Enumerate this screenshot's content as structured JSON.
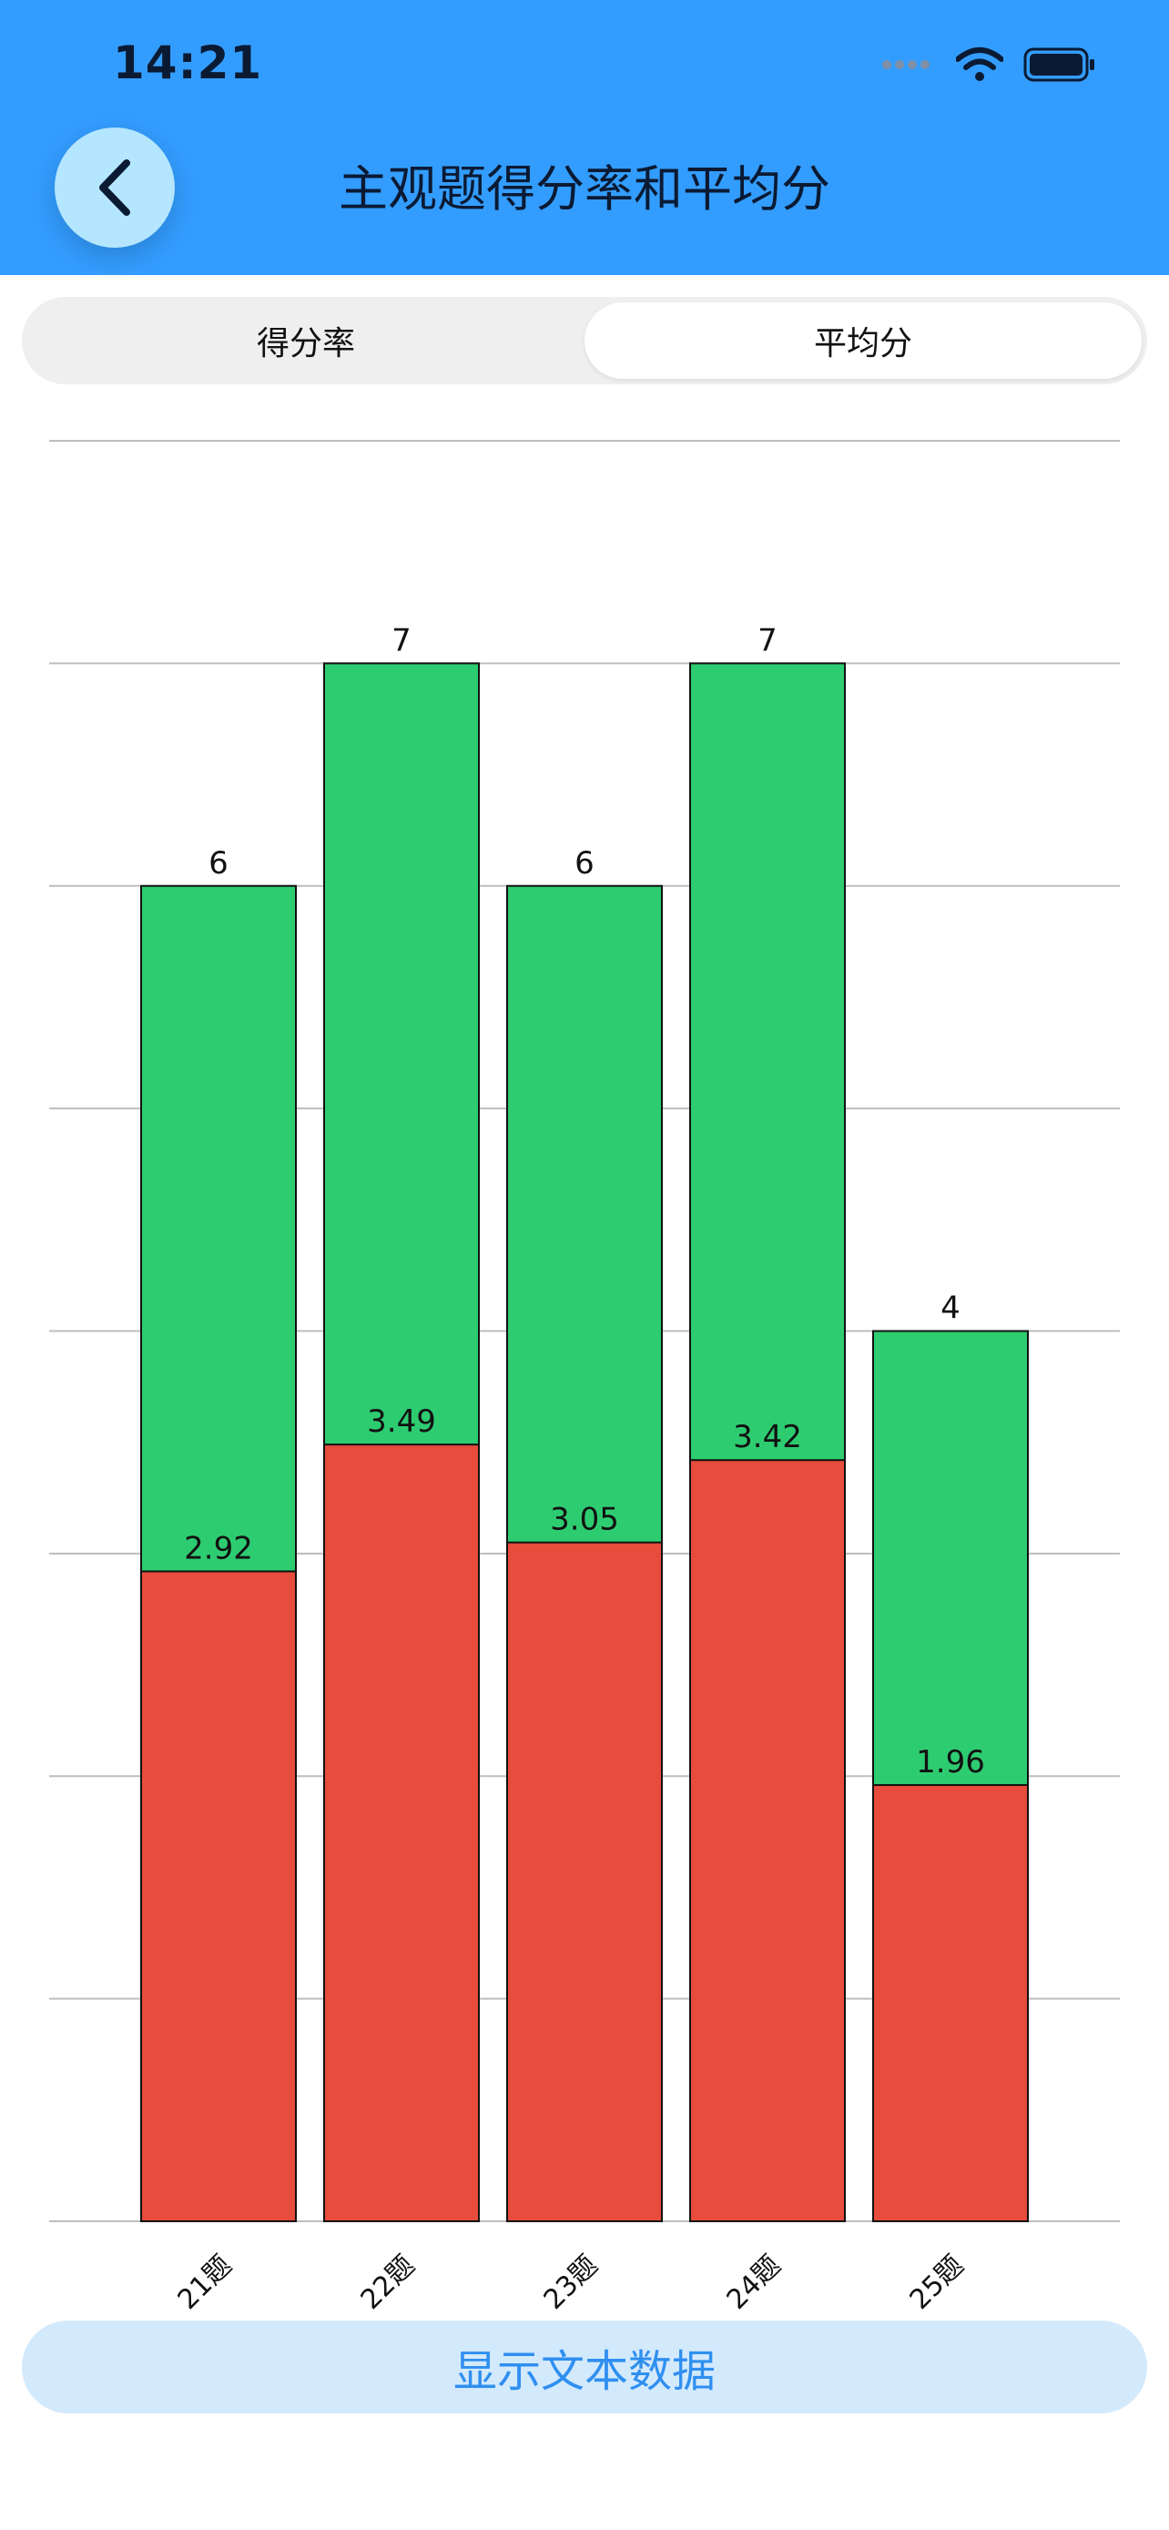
{
  "status": {
    "time": "14:21"
  },
  "header": {
    "title": "主观题得分率和平均分"
  },
  "tabs": [
    {
      "label": "得分率",
      "selected": false
    },
    {
      "label": "平均分",
      "selected": true
    }
  ],
  "colors": {
    "header_bg": "#339dff",
    "total_bar": "#2ecc71",
    "avg_bar": "#e74c3c",
    "accent": "#2f8ff0"
  },
  "chart_data": {
    "type": "bar",
    "categories": [
      "21题",
      "22题",
      "23题",
      "24题",
      "25题"
    ],
    "series": [
      {
        "values": [
          6,
          7,
          6,
          7,
          4
        ],
        "color": "#2ecc71"
      },
      {
        "values": [
          2.92,
          3.49,
          3.05,
          3.42,
          1.96
        ],
        "color": "#e74c3c"
      }
    ],
    "data_labels": {
      "total": [
        "6",
        "7",
        "6",
        "7",
        "4"
      ],
      "avg": [
        "2.92",
        "3.49",
        "3.05",
        "3.42",
        "1.96"
      ]
    },
    "ylim": [
      0,
      8
    ],
    "gridlines": [
      0,
      1,
      2,
      3,
      4,
      5,
      6,
      7,
      8
    ],
    "grid": true,
    "legend": false,
    "title": "",
    "xlabel": "",
    "ylabel": ""
  },
  "footer": {
    "button_label": "显示文本数据"
  }
}
